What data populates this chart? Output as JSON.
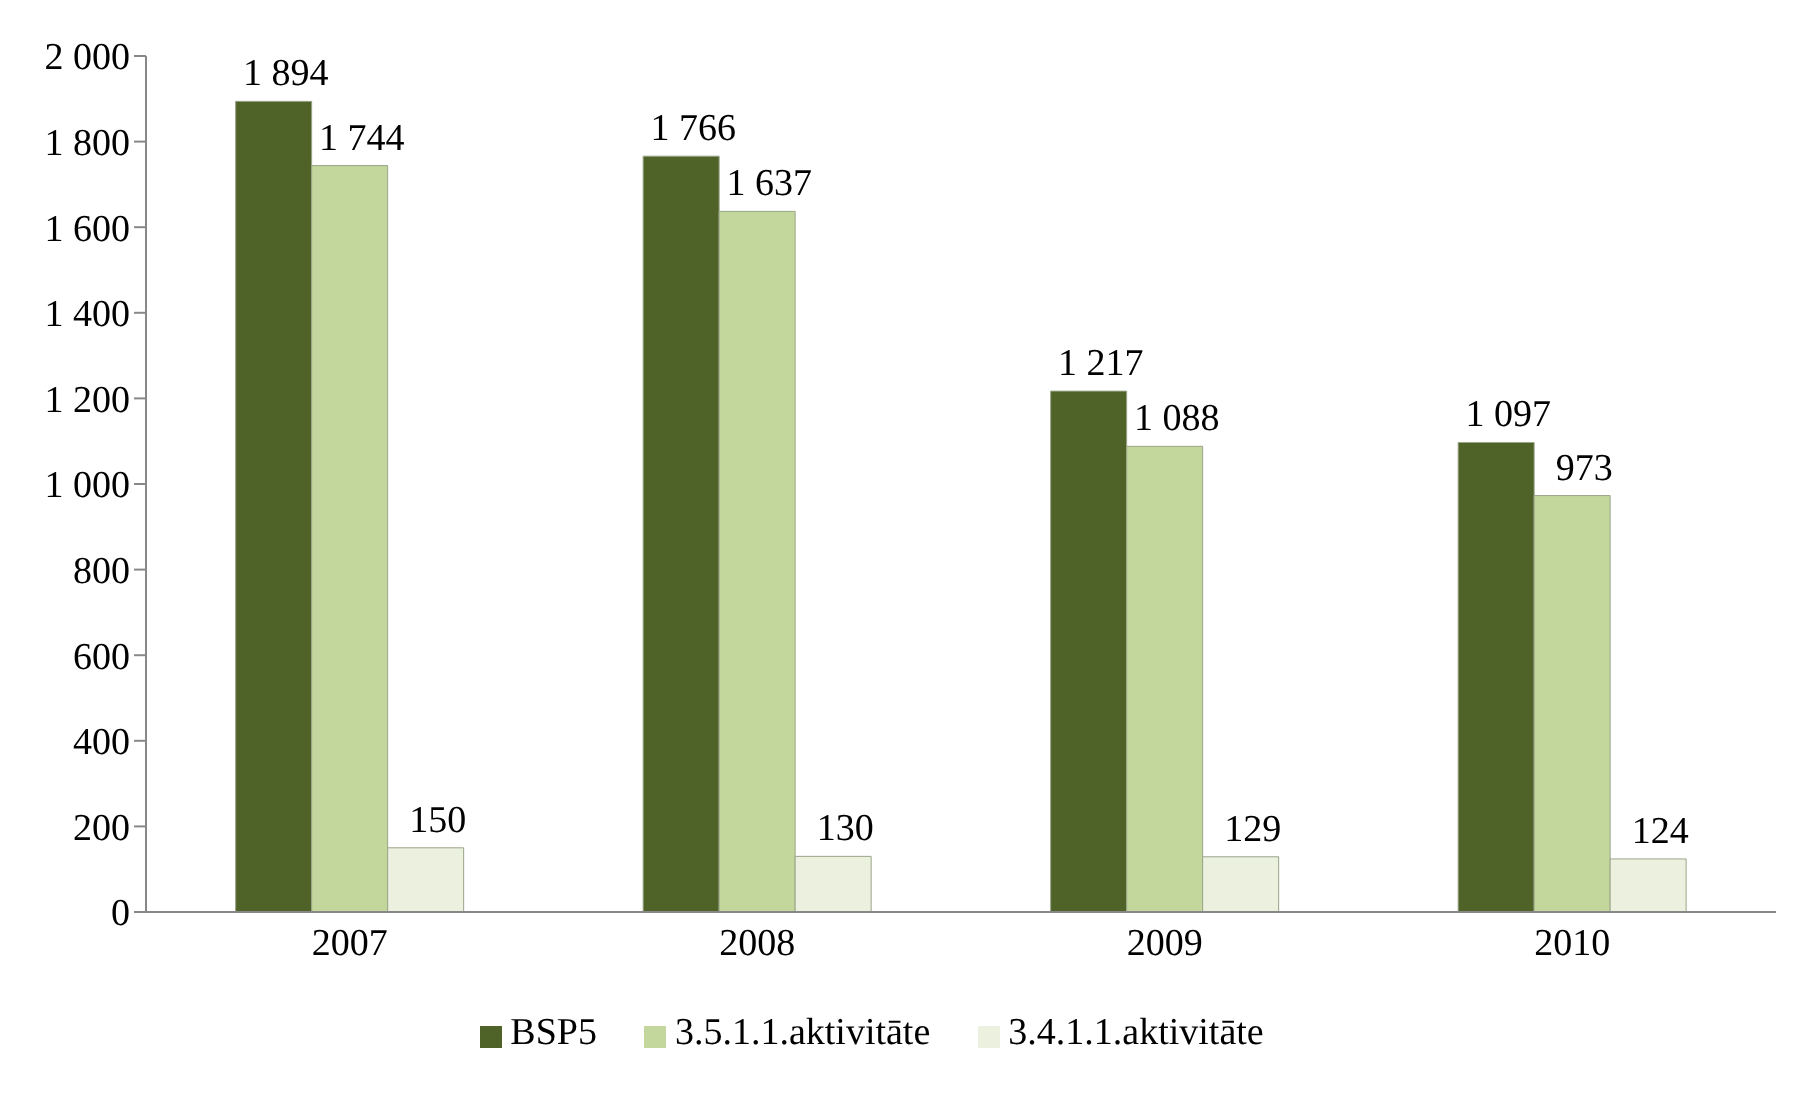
{
  "chart_data": {
    "type": "bar",
    "categories": [
      "2007",
      "2008",
      "2009",
      "2010"
    ],
    "series": [
      {
        "name": "BSP5",
        "color": "#4f6228",
        "values": [
          1894,
          1766,
          1217,
          1097
        ],
        "value_labels": [
          "1 894",
          "1 766",
          "1 217",
          "1 097"
        ]
      },
      {
        "name": "3.5.1.1.aktivitāte",
        "color": "#c3d69b",
        "values": [
          1744,
          1637,
          1088,
          973
        ],
        "value_labels": [
          "1 744",
          "1 637",
          "1 088",
          "973"
        ]
      },
      {
        "name": "3.4.1.1.aktivitāte",
        "color": "#ebf1de",
        "values": [
          150,
          130,
          129,
          124
        ],
        "value_labels": [
          "150",
          "130",
          "129",
          "124"
        ]
      }
    ],
    "ylim": [
      0,
      2000
    ],
    "yticks": [
      0,
      200,
      400,
      600,
      800,
      {
        "value": 1000,
        "label": "1 000"
      },
      {
        "value": 1200,
        "label": "1 200"
      },
      {
        "value": 1400,
        "label": "1 400"
      },
      {
        "value": 1600,
        "label": "1 600"
      },
      {
        "value": 1800,
        "label": "1 800"
      },
      {
        "value": 2000,
        "label": "2 000"
      }
    ],
    "grid": false,
    "legend": "bottom"
  }
}
